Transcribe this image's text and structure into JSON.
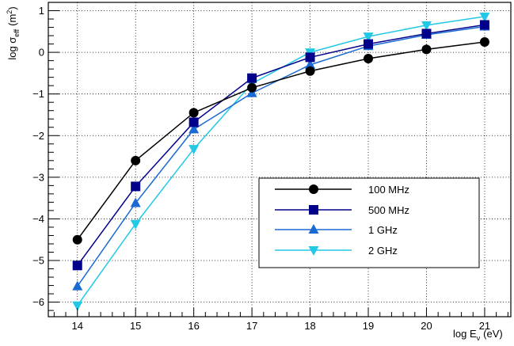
{
  "chart_data": {
    "type": "line",
    "title": "",
    "xlabel": {
      "main": "log E",
      "sub": "ν",
      "unit": "(eV)"
    },
    "ylabel": {
      "main": "log σ",
      "sub": "eff",
      "unit": "(m",
      "sup": "2",
      "close": ")"
    },
    "x": [
      14,
      15,
      16,
      17,
      18,
      19,
      20,
      21
    ],
    "xlim": [
      13.5,
      21.45
    ],
    "ylim": [
      -6.35,
      1.2
    ],
    "xticks": [
      "14",
      "15",
      "16",
      "17",
      "18",
      "19",
      "20",
      "21"
    ],
    "yticks": [
      {
        "v": -6,
        "label": "−6"
      },
      {
        "v": -5,
        "label": "−5"
      },
      {
        "v": -4,
        "label": "−4"
      },
      {
        "v": -3,
        "label": "−3"
      },
      {
        "v": -2,
        "label": "−2"
      },
      {
        "v": -1,
        "label": "−1"
      },
      {
        "v": 0,
        "label": "0"
      },
      {
        "v": 1,
        "label": "1"
      }
    ],
    "grid": true,
    "legend_position": "lower-right",
    "series": [
      {
        "name": "100 MHz",
        "color": "#000000",
        "marker": "circle",
        "values": [
          -4.5,
          -2.6,
          -1.45,
          -0.85,
          -0.45,
          -0.15,
          0.07,
          0.25
        ]
      },
      {
        "name": "500 MHz",
        "color": "#00008b",
        "marker": "square",
        "values": [
          -5.12,
          -3.22,
          -1.68,
          -0.62,
          -0.12,
          0.2,
          0.45,
          0.66
        ]
      },
      {
        "name": "1 GHz",
        "color": "#1a6ad4",
        "marker": "triangle-up",
        "values": [
          -5.62,
          -3.62,
          -1.85,
          -0.98,
          -0.3,
          0.15,
          0.42,
          0.62
        ]
      },
      {
        "name": "2 GHz",
        "color": "#22c8e6",
        "marker": "triangle-down",
        "values": [
          -6.08,
          -4.12,
          -2.32,
          -0.75,
          0.0,
          0.38,
          0.65,
          0.86
        ]
      }
    ]
  }
}
